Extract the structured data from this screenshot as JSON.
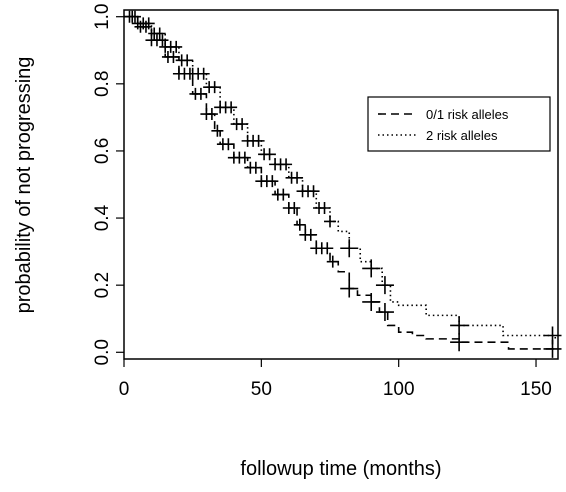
{
  "chart_data": {
    "type": "line",
    "title": "",
    "xlabel": "followup time (months)",
    "ylabel": "probability of not progressing",
    "xlim": [
      0,
      158
    ],
    "ylim": [
      -0.02,
      1.02
    ],
    "x_ticks": [
      "0",
      "50",
      "100",
      "150"
    ],
    "y_ticks": [
      "0.0",
      "0.2",
      "0.4",
      "0.6",
      "0.8",
      "1.0"
    ],
    "grid": false,
    "legend": {
      "position": "top-right",
      "entries": [
        "0/1 risk alleles",
        "2 risk alleles"
      ]
    },
    "series": [
      {
        "name": "0/1 risk alleles",
        "style": "dashed",
        "color": "#000000",
        "points": [
          [
            0,
            1.0
          ],
          [
            5,
            0.97
          ],
          [
            10,
            0.93
          ],
          [
            15,
            0.88
          ],
          [
            20,
            0.83
          ],
          [
            25,
            0.77
          ],
          [
            30,
            0.71
          ],
          [
            33,
            0.66
          ],
          [
            35,
            0.62
          ],
          [
            40,
            0.58
          ],
          [
            45,
            0.55
          ],
          [
            50,
            0.51
          ],
          [
            55,
            0.47
          ],
          [
            60,
            0.43
          ],
          [
            63,
            0.38
          ],
          [
            66,
            0.35
          ],
          [
            70,
            0.31
          ],
          [
            75,
            0.27
          ],
          [
            78,
            0.24
          ],
          [
            82,
            0.19
          ],
          [
            85,
            0.17
          ],
          [
            90,
            0.15
          ],
          [
            93,
            0.12
          ],
          [
            96,
            0.08
          ],
          [
            100,
            0.06
          ],
          [
            105,
            0.05
          ],
          [
            110,
            0.04
          ],
          [
            122,
            0.03
          ],
          [
            140,
            0.01
          ],
          [
            157,
            0.01
          ]
        ],
        "censor_x": [
          2,
          4,
          6,
          8,
          10,
          12,
          14,
          16,
          18,
          20,
          22,
          24,
          26,
          28,
          30,
          32,
          34,
          36,
          38,
          40,
          42,
          44,
          46,
          48,
          50,
          52,
          54,
          56,
          58,
          60,
          62,
          64,
          66,
          68,
          70,
          72,
          74,
          76,
          82,
          90,
          95,
          122,
          156
        ]
      },
      {
        "name": "2 risk alleles",
        "style": "dotted",
        "color": "#000000",
        "points": [
          [
            0,
            1.0
          ],
          [
            5,
            0.98
          ],
          [
            10,
            0.95
          ],
          [
            15,
            0.91
          ],
          [
            20,
            0.87
          ],
          [
            25,
            0.83
          ],
          [
            30,
            0.79
          ],
          [
            35,
            0.73
          ],
          [
            40,
            0.68
          ],
          [
            45,
            0.63
          ],
          [
            50,
            0.59
          ],
          [
            55,
            0.56
          ],
          [
            60,
            0.52
          ],
          [
            65,
            0.48
          ],
          [
            70,
            0.43
          ],
          [
            75,
            0.39
          ],
          [
            78,
            0.36
          ],
          [
            82,
            0.31
          ],
          [
            86,
            0.27
          ],
          [
            90,
            0.25
          ],
          [
            94,
            0.2
          ],
          [
            97,
            0.15
          ],
          [
            100,
            0.14
          ],
          [
            110,
            0.11
          ],
          [
            122,
            0.08
          ],
          [
            138,
            0.05
          ],
          [
            157,
            0.04
          ]
        ],
        "censor_x": [
          3,
          5,
          7,
          9,
          11,
          13,
          15,
          17,
          19,
          21,
          23,
          25,
          27,
          29,
          31,
          33,
          35,
          37,
          39,
          41,
          43,
          45,
          47,
          49,
          51,
          53,
          55,
          57,
          59,
          61,
          63,
          65,
          67,
          69,
          71,
          73,
          75,
          82,
          90,
          95,
          122,
          156
        ]
      }
    ]
  }
}
